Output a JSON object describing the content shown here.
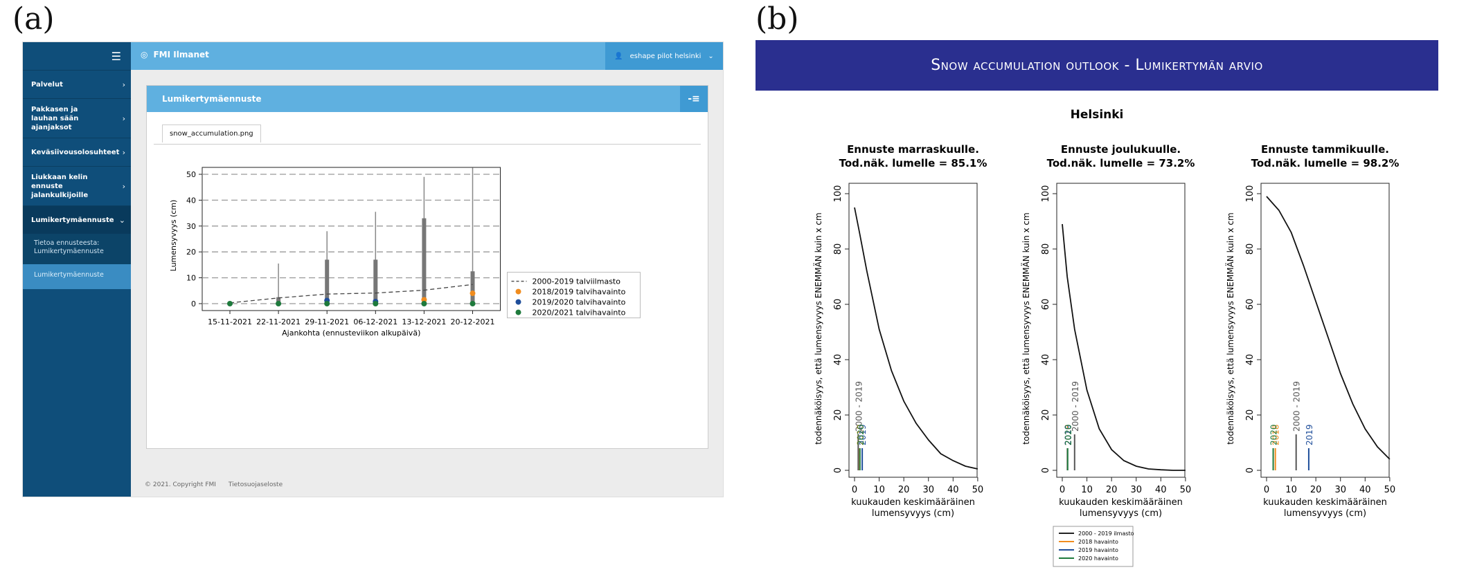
{
  "panel_labels": {
    "a": "(a)",
    "b": "(b)"
  },
  "app": {
    "menu_icon": "hamburger-icon",
    "brand": "FMI Ilmanet",
    "user": "eshape pilot helsinki",
    "sidebar": [
      {
        "label": "Palvelut"
      },
      {
        "label": "Pakkasen ja lauhan sään ajanjaksot"
      },
      {
        "label": "Keväsiivousolosuhteet"
      },
      {
        "label": "Liukkaan kelin ennuste jalankulkijoille"
      },
      {
        "label": "Lumikertymäennuste"
      }
    ],
    "sidebar_sub": [
      "Tietoa ennusteesta: Lumikertymäennuste",
      "Lumikertymäennuste"
    ],
    "box_title": "Lumikertymäennuste",
    "tab": "snow_accumulation.png",
    "footer": [
      "© 2021. Copyright FMI",
      "Tietosuojaseloste"
    ]
  },
  "chart_a": {
    "type": "scatter",
    "categories": [
      "15-11-2021",
      "22-11-2021",
      "29-11-2021",
      "06-12-2021",
      "13-12-2021",
      "20-12-2021"
    ],
    "ylabel": "Lumensyvyys (cm)",
    "xlabel": "Ajankohta (ennusteviikon alkupäivä)",
    "ylim": [
      0,
      50
    ],
    "yticks": [
      0,
      10,
      20,
      30,
      40,
      50
    ],
    "whisker_max": [
      0.3,
      15.5,
      28,
      35.5,
      49,
      52.5
    ],
    "box_max": [
      0.1,
      2.5,
      17,
      17,
      33,
      12.5
    ],
    "climate": [
      0.3,
      2.2,
      3.7,
      4.1,
      5.2,
      7.4
    ],
    "obs_2018_2019": [
      null,
      null,
      null,
      null,
      1.5,
      4
    ],
    "obs_2019_2020": [
      null,
      null,
      1.2,
      0.8,
      null,
      null
    ],
    "obs_2020_2021": [
      0,
      0,
      0,
      0,
      0,
      0
    ],
    "legend": [
      {
        "label": "2000-2019 talviilmasto",
        "color": "#555555",
        "style": "dashed"
      },
      {
        "label": "2018/2019 talvihavainto",
        "color": "#f08c1e",
        "style": "dot"
      },
      {
        "label": "2019/2020 talvihavainto",
        "color": "#1f4e9a",
        "style": "dot"
      },
      {
        "label": "2020/2021 talvihavainto",
        "color": "#1e7a3c",
        "style": "dot"
      }
    ]
  },
  "banner": "Snow accumulation outlook - Lumikertymän arvio",
  "chart_b": {
    "city": "Helsinki",
    "ylabel": "todennäköisyys, että lumensyvyys ENEMMÄN kuin x cm",
    "xlabel": "kuukauden keskimääräinen lumensyvyys (cm)",
    "xticks": [
      0,
      10,
      20,
      30,
      40,
      50
    ],
    "yticks": [
      0,
      20,
      40,
      60,
      80,
      100
    ],
    "panels": [
      {
        "title1": "Ennuste marraskuulle.",
        "title2": "Tod.näk. lumelle = 85.1%",
        "curve": [
          [
            0,
            95
          ],
          [
            2,
            86
          ],
          [
            5,
            72
          ],
          [
            10,
            51
          ],
          [
            15,
            36
          ],
          [
            20,
            25
          ],
          [
            25,
            17
          ],
          [
            30,
            11
          ],
          [
            35,
            6
          ],
          [
            40,
            3.5
          ],
          [
            45,
            1.5
          ],
          [
            50,
            0.5
          ]
        ],
        "verticals": [
          {
            "x": 1.5,
            "label": "2000 - 2019",
            "color": "#555555"
          },
          {
            "x": 1.5,
            "label": "2018",
            "color": "#f08c1e"
          },
          {
            "x": 2,
            "label": "2019",
            "color": "#1f4e9a"
          },
          {
            "x": 0.5,
            "label": "2020",
            "color": "#1e7a3c"
          }
        ]
      },
      {
        "title1": "Ennuste joulukuulle.",
        "title2": "Tod.näk. lumelle = 73.2%",
        "curve": [
          [
            0,
            89
          ],
          [
            2,
            70
          ],
          [
            5,
            51
          ],
          [
            10,
            29
          ],
          [
            15,
            15
          ],
          [
            20,
            7.5
          ],
          [
            25,
            3.5
          ],
          [
            30,
            1.5
          ],
          [
            35,
            0.5
          ],
          [
            40,
            0.2
          ],
          [
            45,
            0
          ],
          [
            50,
            0
          ]
        ],
        "verticals": [
          {
            "x": 5,
            "label": "2000 - 2019",
            "color": "#555555"
          },
          {
            "x": 1.5,
            "label": "2018",
            "color": "#f08c1e"
          },
          {
            "x": 1,
            "label": "2019",
            "color": "#1f4e9a"
          },
          {
            "x": 0.5,
            "label": "2020",
            "color": "#1e7a3c"
          }
        ]
      },
      {
        "title1": "Ennuste tammikuulle.",
        "title2": "Tod.näk. lumelle = 98.2%",
        "curve": [
          [
            0,
            99
          ],
          [
            5,
            94
          ],
          [
            10,
            86
          ],
          [
            15,
            74
          ],
          [
            20,
            61
          ],
          [
            25,
            48
          ],
          [
            30,
            35
          ],
          [
            35,
            24
          ],
          [
            40,
            15
          ],
          [
            45,
            8.5
          ],
          [
            50,
            4
          ]
        ],
        "verticals": [
          {
            "x": 12,
            "label": "2000 - 2019",
            "color": "#555555"
          },
          {
            "x": 3,
            "label": "2018",
            "color": "#f08c1e"
          },
          {
            "x": 16,
            "label": "2019",
            "color": "#1f4e9a"
          },
          {
            "x": 1,
            "label": "2020",
            "color": "#1e7a3c"
          }
        ]
      }
    ],
    "legend": [
      {
        "label": "2000 - 2019 ilmasto",
        "color": "#222222"
      },
      {
        "label": "2018 havainto",
        "color": "#f08c1e"
      },
      {
        "label": "2019 havainto",
        "color": "#1f4e9a"
      },
      {
        "label": "2020 havainto",
        "color": "#1e7a3c"
      }
    ]
  }
}
